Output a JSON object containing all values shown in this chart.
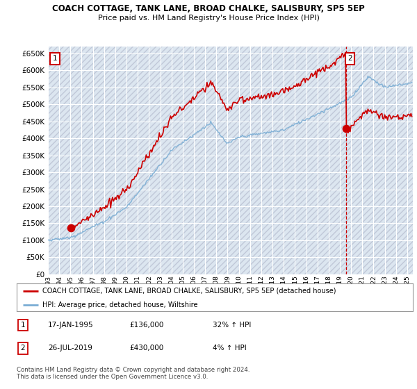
{
  "title": "COACH COTTAGE, TANK LANE, BROAD CHALKE, SALISBURY, SP5 5EP",
  "subtitle": "Price paid vs. HM Land Registry's House Price Index (HPI)",
  "ylim": [
    0,
    670000
  ],
  "yticks": [
    0,
    50000,
    100000,
    150000,
    200000,
    250000,
    300000,
    350000,
    400000,
    450000,
    500000,
    550000,
    600000,
    650000
  ],
  "xlim_start": 1993.0,
  "xlim_end": 2025.5,
  "plot_bg_color": "#dce6f0",
  "grid_color": "#ffffff",
  "hatch_color": "#c0c8d8",
  "red_line_color": "#cc0000",
  "blue_line_color": "#7aadd4",
  "point1_x": 1995.04,
  "point1_y": 136000,
  "point2_x": 2019.57,
  "point2_y": 430000,
  "vline_x": 2019.57,
  "legend_red_label": "COACH COTTAGE, TANK LANE, BROAD CHALKE, SALISBURY, SP5 5EP (detached house)",
  "legend_blue_label": "HPI: Average price, detached house, Wiltshire",
  "note1_num": "1",
  "note1_date": "17-JAN-1995",
  "note1_price": "£136,000",
  "note1_hpi": "32% ↑ HPI",
  "note2_num": "2",
  "note2_date": "26-JUL-2019",
  "note2_price": "£430,000",
  "note2_hpi": "4% ↑ HPI",
  "footer": "Contains HM Land Registry data © Crown copyright and database right 2024.\nThis data is licensed under the Open Government Licence v3.0."
}
